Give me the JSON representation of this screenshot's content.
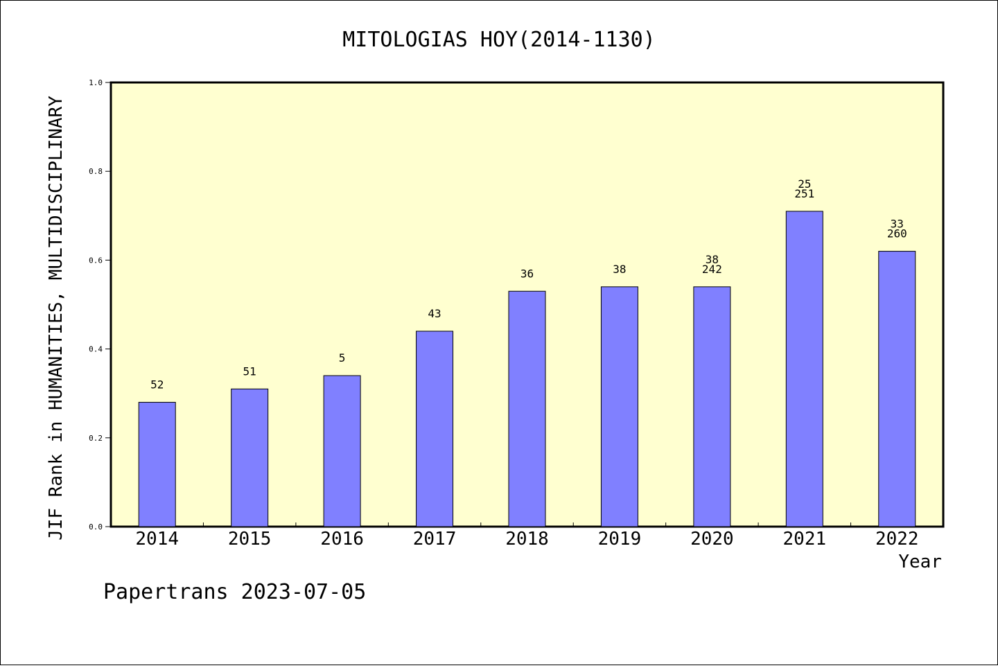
{
  "chart_data": {
    "type": "bar",
    "title": "MITOLOGIAS HOY(2014-1130)",
    "xlabel": "Year",
    "ylabel": "JIF Rank in HUMANITIES, MULTIDISCIPLINARY",
    "ylim": [
      0,
      1.0
    ],
    "yticks": [
      "0.0",
      "0.2",
      "0.4",
      "0.6",
      "0.8",
      "1.0"
    ],
    "categories": [
      "2014",
      "2015",
      "2016",
      "2017",
      "2018",
      "2019",
      "2020",
      "2021",
      "2022"
    ],
    "values": [
      0.28,
      0.31,
      0.34,
      0.44,
      0.53,
      0.54,
      0.54,
      0.71,
      0.62
    ],
    "labels": [
      [
        "52"
      ],
      [
        "51"
      ],
      [
        "5"
      ],
      [
        "43"
      ],
      [
        "36"
      ],
      [
        "38"
      ],
      [
        "38",
        "242"
      ],
      [
        "25",
        "251"
      ],
      [
        "33",
        "260"
      ]
    ],
    "grid": false,
    "legend": "none",
    "colors": {
      "bar": "#8080ff",
      "plot_background": "#ffffd0",
      "axis": "#000000"
    }
  },
  "footer": "Papertrans 2023-07-05"
}
